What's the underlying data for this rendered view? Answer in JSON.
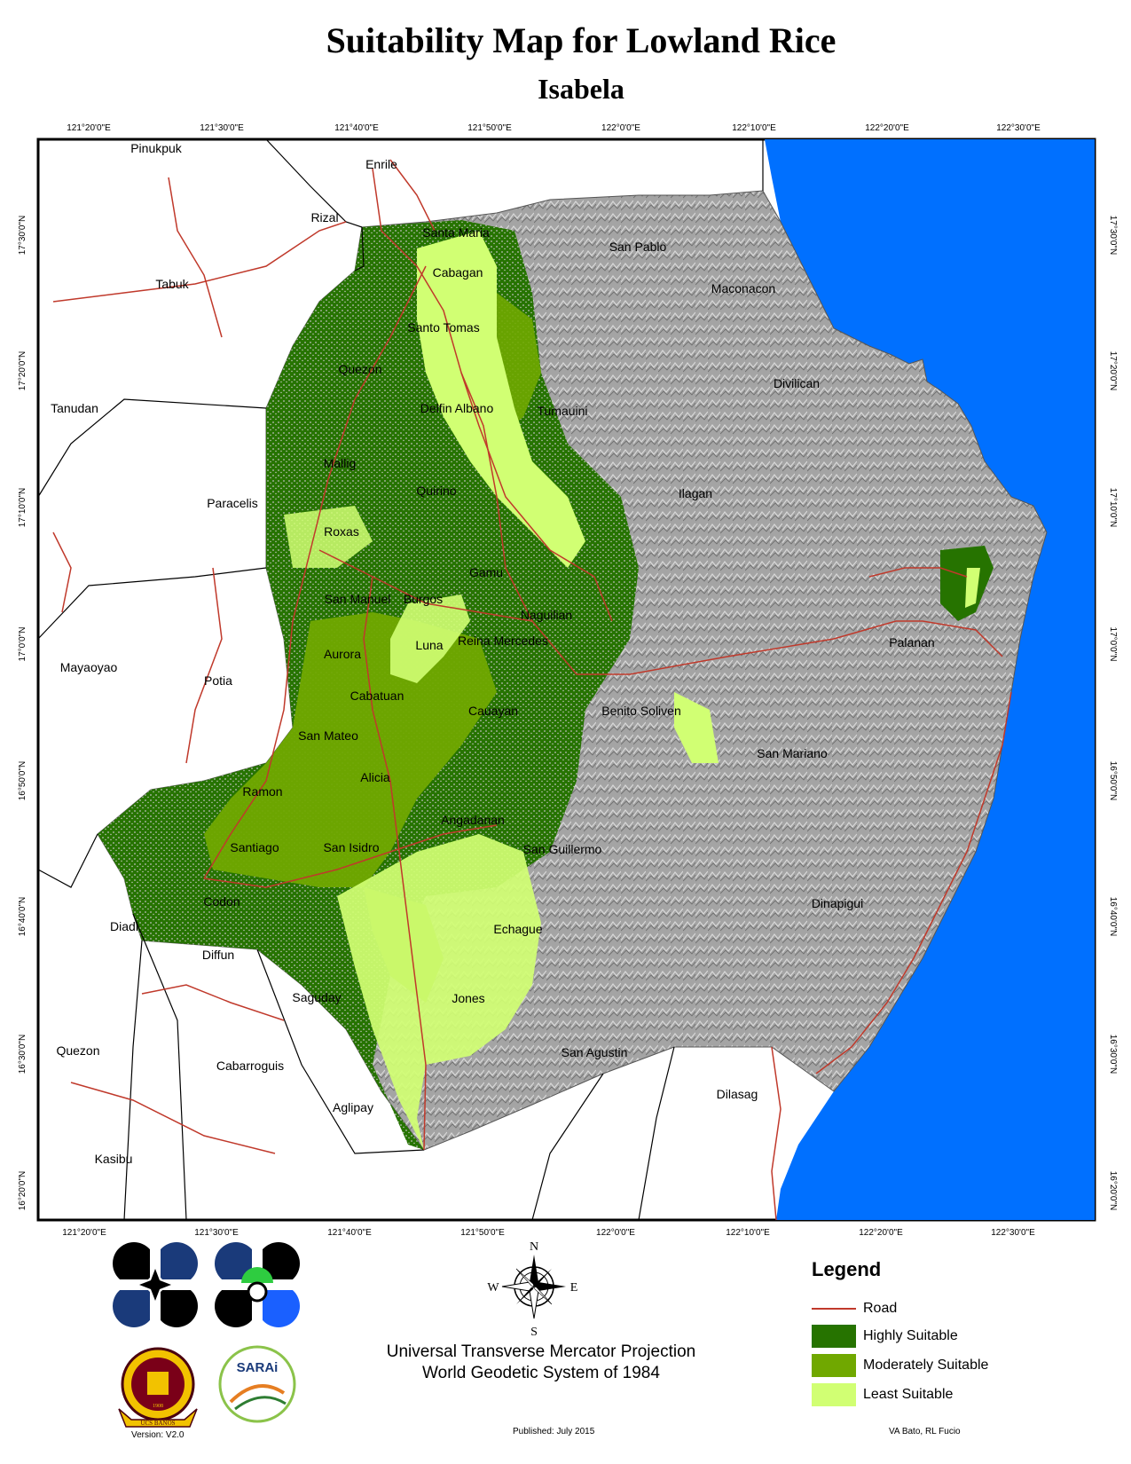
{
  "title": "Suitability Map for Lowland Rice",
  "subtitle": "Isabela",
  "top_lon_ticks": [
    "121°20'0\"E",
    "121°30'0\"E",
    "121°40'0\"E",
    "121°50'0\"E",
    "122°0'0\"E",
    "122°10'0\"E",
    "122°20'0\"E",
    "122°30'0\"E"
  ],
  "bottom_lon_ticks": [
    "121°20'0\"E",
    "121°30'0\"E",
    "121°40'0\"E",
    "121°50'0\"E",
    "122°0'0\"E",
    "122°10'0\"E",
    "122°20'0\"E",
    "122°30'0\"E"
  ],
  "lat_ticks": [
    "17°30'0\"N",
    "17°20'0\"N",
    "17°10'0\"N",
    "17°0'0\"N",
    "16°50'0\"N",
    "16°40'0\"N",
    "16°30'0\"N",
    "16°20'0\"N"
  ],
  "places": {
    "pinukpuk": "Pinukpuk",
    "enrile": "Enrile",
    "rizal": "Rizal",
    "santa_maria": "Santa Maria",
    "san_pablo": "San Pablo",
    "cabagan": "Cabagan",
    "tabuk": "Tabuk",
    "maconacon": "Maconacon",
    "santo_tomas": "Santo Tomas",
    "quezon_n": "Quezon",
    "divilican": "Divilican",
    "tanudan": "Tanudan",
    "delfin_albano": "Delfin Albano",
    "tumauini": "Tumauini",
    "mallig": "Mallig",
    "ilagan": "Ilagan",
    "quirino": "Quirino",
    "paracelis": "Paracelis",
    "roxas": "Roxas",
    "gamu": "Gamu",
    "san_manuel": "San Manuel",
    "burgos": "Burgos",
    "naguilian": "Naguilian",
    "palanan": "Palanan",
    "reina_mercedes": "Reina Mercedes",
    "luna": "Luna",
    "mayoyao": "Mayaoyao",
    "aurora": "Aurora",
    "potia": "Potia",
    "cabatuan": "Cabatuan",
    "cauayan": "Cauayan",
    "benito_soliven": "Benito Soliven",
    "san_mateo": "San Mateo",
    "san_mariano": "San Mariano",
    "alicia": "Alicia",
    "ramon": "Ramon",
    "angadanan": "Angadanan",
    "santiago": "Santiago",
    "san_isidro": "San Isidro",
    "san_guillermo": "San Guillermo",
    "codon": "Codon",
    "dinapigui": "Dinapigui",
    "diadi": "Diadi",
    "echague": "Echague",
    "diffun": "Diffun",
    "saguday": "Saguday",
    "jones": "Jones",
    "quezon_s": "Quezon",
    "san_agustin": "San Agustin",
    "cabarroguis": "Cabarroguis",
    "dilasag": "Dilasag",
    "aglipay": "Aglipay",
    "kasibu": "Kasibu"
  },
  "legend": {
    "title": "Legend",
    "items": [
      {
        "label": "Road",
        "color": "#c0392b",
        "kind": "line"
      },
      {
        "label": "Highly Suitable",
        "color": "#267300",
        "kind": "fill"
      },
      {
        "label": "Moderately Suitable",
        "color": "#70a800",
        "kind": "fill"
      },
      {
        "label": "Least Suitable",
        "color": "#d1ff73",
        "kind": "fill"
      }
    ]
  },
  "colors": {
    "sea": "#0070ff",
    "terrain": "#9e9e9e",
    "road": "#c0392b"
  },
  "projection": [
    "Universal Transverse Mercator Projection",
    "World Geodetic System of 1984"
  ],
  "compass": {
    "n": "N",
    "s": "S",
    "e": "E",
    "w": "W"
  },
  "footer": {
    "version": "Version: V2.0",
    "published": "Published: July 2015",
    "authors": "VA Bato, RL Fucio"
  },
  "logos": [
    "DA logo",
    "BAR logo",
    "UPLB seal",
    "SARAi logo"
  ],
  "seal_text": [
    "UCS BANOS",
    "1908"
  ],
  "sarai_text": "SARAi"
}
